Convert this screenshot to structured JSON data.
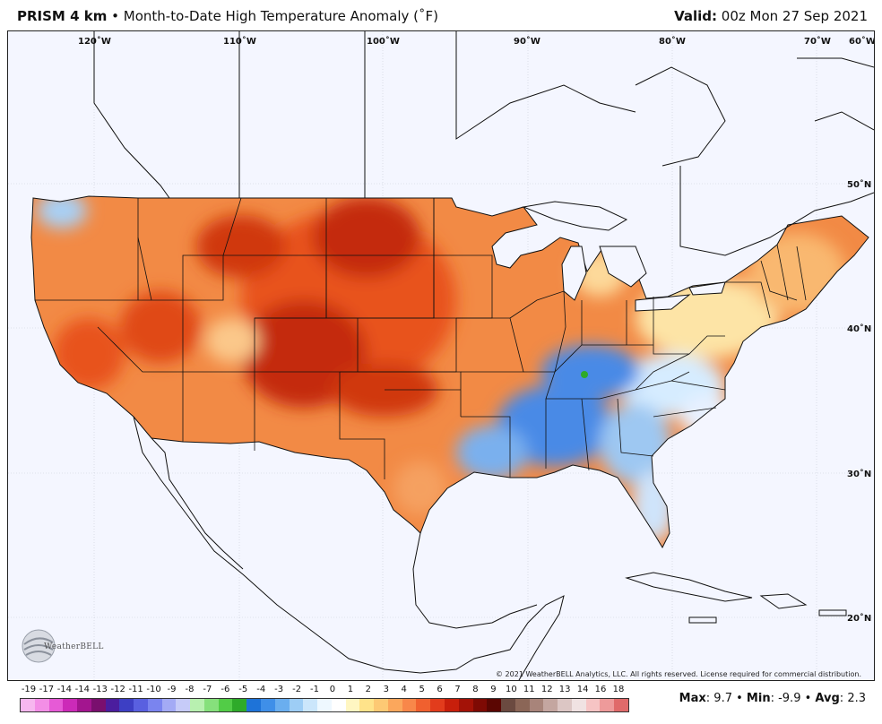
{
  "header": {
    "product": "PRISM 4 km",
    "separator": "•",
    "description": "Month-to-Date High Temperature Anomaly (˚F)",
    "valid_label": "Valid:",
    "valid_time": "00z Mon 27 Sep 2021"
  },
  "map": {
    "longitude_labels": [
      "120˚W",
      "110˚W",
      "100˚W",
      "90˚W",
      "80˚W",
      "70˚W",
      "60˚W"
    ],
    "latitude_labels": [
      "50˚N",
      "40˚N",
      "30˚N",
      "20˚N"
    ],
    "colors": {
      "ocean": "#f4f6ff",
      "warm_strong": "#b61a05",
      "warm": "#e8521a",
      "warm_light": "#f28a45",
      "warm_pale": "#fbc88a",
      "neutral": "#fff5d6",
      "cool": "#4a8ae6",
      "cool_light": "#9ec8f2",
      "cool_pale": "#d6ecff"
    }
  },
  "copyright": "© 2021 WeatherBELL Analytics, LLC. All rights reserved. License required for commercial distribution.",
  "logo": {
    "text": "WeatherBELL",
    "icon": "globe-swirl-icon"
  },
  "legend": {
    "labels": [
      "-19",
      "-17",
      "-14",
      "-14",
      "-13",
      "-12",
      "-11",
      "-10",
      "-9",
      "-8",
      "-7",
      "-6",
      "-5",
      "-4",
      "-3",
      "-2",
      "-1",
      "0",
      "1",
      "2",
      "3",
      "4",
      "5",
      "6",
      "7",
      "8",
      "9",
      "10",
      "11",
      "12",
      "13",
      "14",
      "16",
      "18"
    ],
    "colors": [
      "#f7b7ef",
      "#f38ee6",
      "#e65ad6",
      "#cc2ab8",
      "#a3158f",
      "#7a0f6e",
      "#4b1d9e",
      "#3d3fc4",
      "#5960e0",
      "#7a84ef",
      "#a3aaf5",
      "#c6cbf8",
      "#b8f0b0",
      "#86e07c",
      "#52cc47",
      "#2eaa2a",
      "#1e73d8",
      "#3f8fe8",
      "#6aaeef",
      "#9dcdf5",
      "#cbe6fb",
      "#eef8ff",
      "#ffffff",
      "#fff6c2",
      "#ffe38a",
      "#fdc974",
      "#fba75c",
      "#f8874a",
      "#f0602f",
      "#e23c1c",
      "#c81f0b",
      "#a31207",
      "#7e0a04",
      "#5b0602",
      "#6b4a40",
      "#8b6657",
      "#a8847a",
      "#c4a6a0",
      "#dcc6c4",
      "#f0e2e2",
      "#f6c4c4",
      "#ee9a9a",
      "#e06a6a"
    ]
  },
  "stats": {
    "max_label": "Max",
    "max_value": "9.7",
    "min_label": "Min",
    "min_value": "-9.9",
    "avg_label": "Avg",
    "avg_value": "2.3"
  }
}
